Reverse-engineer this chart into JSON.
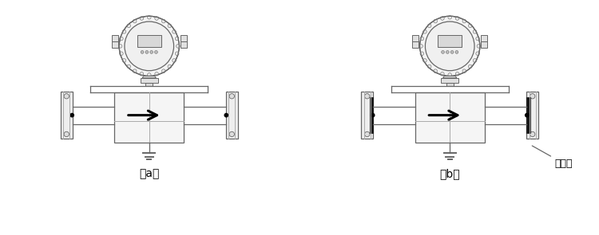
{
  "bg_color": "#ffffff",
  "line_color": "#aaaaaa",
  "dark_line": "#666666",
  "black": "#000000",
  "label_a": "（a）",
  "label_b": "（b）",
  "annotation_text": "接地环",
  "fig_width": 7.5,
  "fig_height": 2.95,
  "dpi": 100
}
